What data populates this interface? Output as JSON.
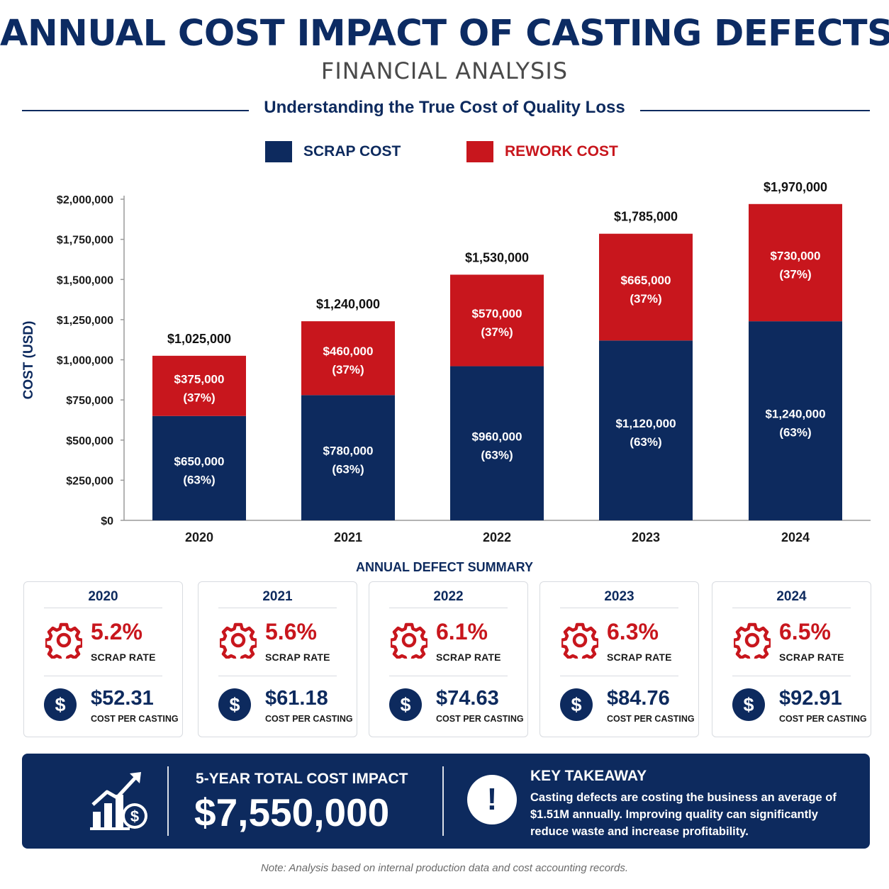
{
  "header": {
    "title": "ANNUAL COST IMPACT OF CASTING DEFECTS",
    "subtitle": "FINANCIAL ANALYSIS",
    "tagline": "Understanding the True Cost of Quality Loss"
  },
  "legend": {
    "scrap_label": "SCRAP COST",
    "rework_label": "REWORK COST"
  },
  "colors": {
    "navy": "#0d2a5e",
    "red": "#c8161d"
  },
  "chart_data": {
    "type": "bar",
    "stacked": true,
    "categories": [
      "2020",
      "2021",
      "2022",
      "2023",
      "2024"
    ],
    "series": [
      {
        "name": "SCRAP COST",
        "values": [
          650000,
          780000,
          960000,
          1120000,
          1240000
        ],
        "labels": [
          "$650,000",
          "$780,000",
          "$960,000",
          "$1,120,000",
          "$1,240,000"
        ],
        "pct_labels": [
          "(63%)",
          "(63%)",
          "(63%)",
          "(63%)",
          "(63%)"
        ],
        "color": "#0d2a5e"
      },
      {
        "name": "REWORK COST",
        "values": [
          375000,
          460000,
          570000,
          665000,
          730000
        ],
        "labels": [
          "$375,000",
          "$460,000",
          "$570,000",
          "$665,000",
          "$730,000"
        ],
        "pct_labels": [
          "(37%)",
          "(37%)",
          "(37%)",
          "(37%)",
          "(37%)"
        ],
        "color": "#c8161d"
      }
    ],
    "totals": [
      1025000,
      1240000,
      1530000,
      1785000,
      1970000
    ],
    "total_labels": [
      "$1,025,000",
      "$1,240,000",
      "$1,530,000",
      "$1,785,000",
      "$1,970,000"
    ],
    "ylabel": "COST (USD)",
    "ylim": [
      0,
      2000000
    ],
    "yticks": [
      0,
      250000,
      500000,
      750000,
      1000000,
      1250000,
      1500000,
      1750000,
      2000000
    ],
    "ytick_labels": [
      "$0",
      "$250,000",
      "$500,000",
      "$750,000",
      "$1,000,000",
      "$1,250,000",
      "$1,500,000",
      "$1,750,000",
      "$2,000,000"
    ],
    "grid": false,
    "legend_position": "top"
  },
  "summary": {
    "heading": "ANNUAL DEFECT SUMMARY",
    "cards": [
      {
        "year": "2020",
        "scrap_rate": "5.2%",
        "scrap_label": "SCRAP RATE",
        "cost": "$52.31",
        "cost_label": "COST PER CASTING"
      },
      {
        "year": "2021",
        "scrap_rate": "5.6%",
        "scrap_label": "SCRAP RATE",
        "cost": "$61.18",
        "cost_label": "COST PER CASTING"
      },
      {
        "year": "2022",
        "scrap_rate": "6.1%",
        "scrap_label": "SCRAP RATE",
        "cost": "$74.63",
        "cost_label": "COST PER CASTING"
      },
      {
        "year": "2023",
        "scrap_rate": "6.3%",
        "scrap_label": "SCRAP RATE",
        "cost": "$84.76",
        "cost_label": "COST PER CASTING"
      },
      {
        "year": "2024",
        "scrap_rate": "6.5%",
        "scrap_label": "SCRAP RATE",
        "cost": "$92.91",
        "cost_label": "COST PER CASTING"
      }
    ],
    "icons": {
      "rate": "gear-icon",
      "cost": "dollar-icon"
    }
  },
  "banner": {
    "total_label": "5-YEAR TOTAL COST IMPACT",
    "total_value": "$7,550,000",
    "key_label": "KEY TAKEAWAY",
    "key_text": "Casting defects are costing the business an average of $1.51M annually. Improving quality can significantly reduce waste and increase profitability.",
    "icons": {
      "growth": "chart-growth-dollar-icon",
      "alert": "exclamation-icon"
    }
  },
  "footer": {
    "note": "Note: Analysis based on internal production data and cost accounting records."
  }
}
